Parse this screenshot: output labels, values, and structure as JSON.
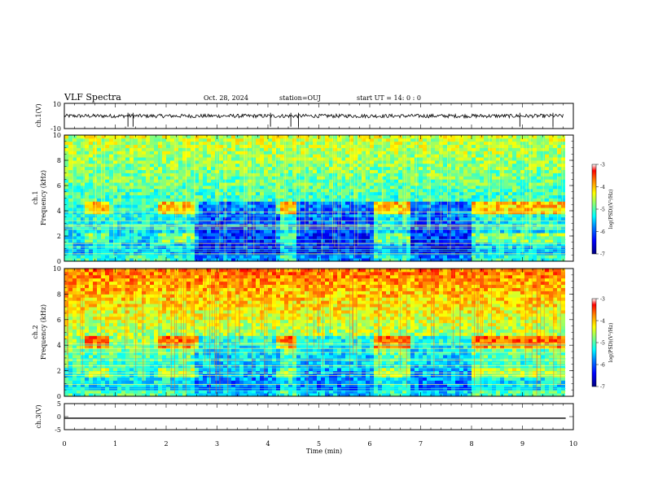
{
  "header": {
    "title": "VLF Spectra",
    "date": "Oct. 28, 2024",
    "station": "station=OUJ",
    "start": "start  UT  =   14: 0  : 0"
  },
  "colors": {
    "colormap": [
      "#00007f",
      "#0000ff",
      "#0080ff",
      "#00ffff",
      "#80ff80",
      "#ffff00",
      "#ff8000",
      "#ff0000",
      "#ffffff"
    ]
  },
  "chart_data": [
    {
      "type": "line",
      "name": "waveform-ch1",
      "ylabel": "ch.1(V)",
      "ylim": [
        -10,
        10
      ],
      "yticks": [
        "10",
        "-10"
      ],
      "x": [
        0,
        10
      ],
      "level": 0
    },
    {
      "type": "heatmap",
      "name": "spectrogram-ch1",
      "ylabel_line1": "ch.1",
      "ylabel_line2": "Frequency (kHz)",
      "ylim": [
        0,
        10
      ],
      "yticks": [
        "0",
        "2",
        "4",
        "6",
        "8",
        "10"
      ],
      "xlim": [
        0,
        10
      ],
      "colorbar": {
        "label": "log(PSD)(V²/Hz)",
        "range": [
          -7,
          -3
        ],
        "ticks": [
          "-3",
          "-4",
          "-5",
          "-6",
          "-7"
        ]
      },
      "bright_segments_min": [
        [
          0.4,
          0.9
        ],
        [
          1.8,
          2.6
        ],
        [
          4.2,
          4.6
        ],
        [
          6.1,
          6.8
        ],
        [
          8.0,
          9.8
        ]
      ],
      "quiet_segments_min": [
        [
          2.6,
          4.2
        ],
        [
          4.6,
          6.1
        ],
        [
          6.8,
          8.0
        ]
      ]
    },
    {
      "type": "heatmap",
      "name": "spectrogram-ch2",
      "ylabel_line1": "ch.2",
      "ylabel_line2": "Frequency (kHz)",
      "ylim": [
        0,
        10
      ],
      "yticks": [
        "0",
        "2",
        "4",
        "6",
        "8",
        "10"
      ],
      "xlim": [
        0,
        10
      ],
      "colorbar": {
        "label": "log(PSD)(V²/Hz)",
        "range": [
          -7,
          -3
        ],
        "ticks": [
          "-3",
          "-4",
          "-5",
          "-6",
          "-7"
        ]
      }
    },
    {
      "type": "line",
      "name": "waveform-ch3",
      "ylabel": "ch.3(V)",
      "ylim": [
        -5,
        5
      ],
      "yticks": [
        "5",
        "0",
        "-5"
      ],
      "x": [
        0,
        10
      ],
      "level": -0.6
    }
  ],
  "xaxis": {
    "label": "Time  (min)",
    "ticks": [
      "0",
      "1",
      "2",
      "3",
      "4",
      "5",
      "6",
      "7",
      "8",
      "9",
      "10"
    ],
    "range": [
      0,
      10
    ]
  }
}
